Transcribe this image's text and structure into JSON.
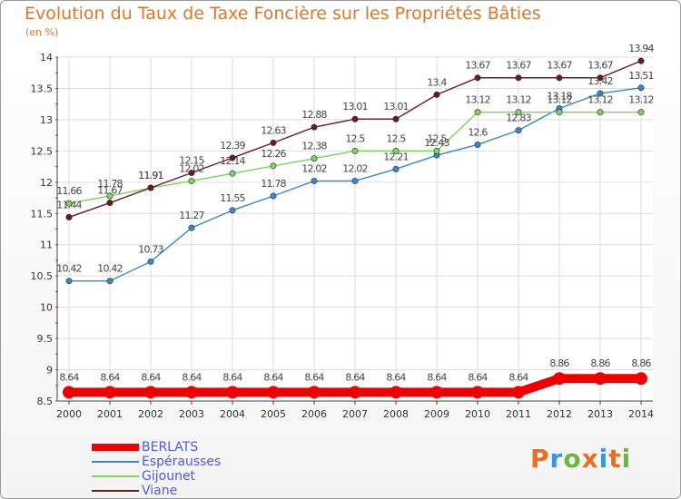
{
  "title": "Evolution du Taux de Taxe Foncière sur les Propriétés Bâties",
  "subtitle": "(en %)",
  "logo": {
    "text": "Proxiti",
    "colors": [
      "#e86f1e",
      "#3a96d6",
      "#6fb63a",
      "#e86f1e",
      "#3a96d6",
      "#e86f1e",
      "#6fb63a"
    ]
  },
  "chart_data": {
    "type": "line",
    "title": "Evolution du Taux de Taxe Foncière sur les Propriétés Bâties",
    "ylabel": "(en %)",
    "xlabel": "",
    "x": [
      "2000",
      "2001",
      "2002",
      "2003",
      "2004",
      "2005",
      "2006",
      "2007",
      "2008",
      "2009",
      "2010",
      "2011",
      "2012",
      "2013",
      "2014"
    ],
    "ylim": [
      8.5,
      14
    ],
    "yticks": [
      "8.5",
      "9",
      "9.5",
      "10",
      "10.5",
      "11",
      "11.5",
      "12",
      "12.5",
      "13",
      "13.5",
      "14"
    ],
    "grid": true,
    "legend_position": "bottom-left",
    "series": [
      {
        "name": "BERLATS",
        "color": "#ee0000",
        "values": [
          8.64,
          8.64,
          8.64,
          8.64,
          8.64,
          8.64,
          8.64,
          8.64,
          8.64,
          8.64,
          8.64,
          8.64,
          8.86,
          8.86,
          8.86
        ],
        "labels": [
          "8.64",
          "8.64",
          "8.64",
          "8.64",
          "8.64",
          "8.64",
          "8.64",
          "8.64",
          "8.64",
          "8.64",
          "8.64",
          "8.64",
          "8.86",
          "8.86",
          "8.86"
        ]
      },
      {
        "name": "Espérausses",
        "color": "#3a87c8",
        "values": [
          10.42,
          10.42,
          10.73,
          11.27,
          11.55,
          11.78,
          12.02,
          12.02,
          12.21,
          12.43,
          12.6,
          12.83,
          13.18,
          13.42,
          13.51
        ],
        "labels": [
          "10.42",
          "10.42",
          "10.73",
          "11.27",
          "11.55",
          "11.78",
          "12.02",
          "12.02",
          "12.21",
          "12.43",
          "12.6",
          "12.83",
          "13.18",
          "13.42",
          "13.51"
        ]
      },
      {
        "name": "Gijounet",
        "color": "#7ed35a",
        "values": [
          11.66,
          11.78,
          11.91,
          12.02,
          12.14,
          12.26,
          12.38,
          12.5,
          12.5,
          12.5,
          13.12,
          13.12,
          13.12,
          13.12,
          13.12
        ],
        "labels": [
          "11.66",
          "11.78",
          "11.91",
          "12.02",
          "12.14",
          "12.26",
          "12.38",
          "12.5",
          "12.5",
          "12.5",
          "13.12",
          "13.12",
          "13.12",
          "13.12",
          "13.12"
        ]
      },
      {
        "name": "Viane",
        "color": "#6b1a1a",
        "values": [
          11.44,
          11.67,
          11.91,
          12.15,
          12.39,
          12.63,
          12.88,
          13.01,
          13.01,
          13.4,
          13.67,
          13.67,
          13.67,
          13.67,
          13.94
        ],
        "labels": [
          "11.44",
          "11.67",
          "11.91",
          "12.15",
          "12.39",
          "12.63",
          "12.88",
          "13.01",
          "13.01",
          "13.4",
          "13.67",
          "13.67",
          "13.67",
          "13.67",
          "13.94"
        ]
      }
    ]
  }
}
